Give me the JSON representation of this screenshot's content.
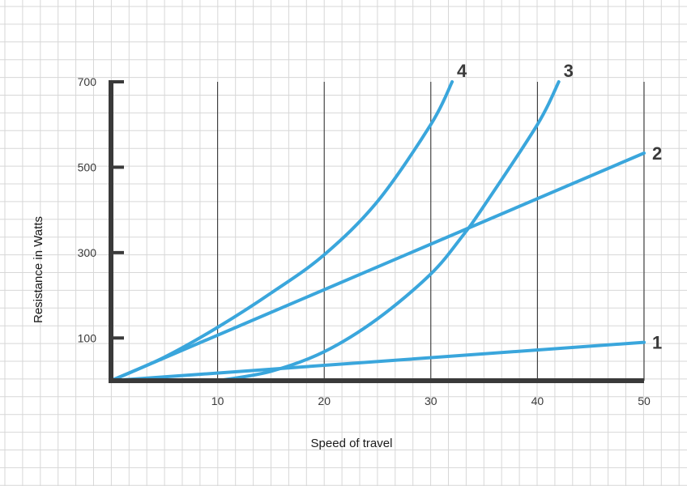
{
  "chart_data": {
    "type": "line",
    "title": "",
    "xlabel": "Speed of travel",
    "ylabel": "Resistance in Watts",
    "xlim": [
      0,
      50
    ],
    "ylim": [
      0,
      700
    ],
    "x_ticks": [
      10,
      20,
      30,
      40,
      50
    ],
    "y_ticks": [
      100,
      300,
      500,
      700
    ],
    "grid": true,
    "line_color": "#3aa6dc",
    "axis_color": "#3a3a3a",
    "series": [
      {
        "name": "1",
        "points": [
          [
            0,
            0
          ],
          [
            50,
            90
          ]
        ]
      },
      {
        "name": "2",
        "points": [
          [
            0,
            0
          ],
          [
            50,
            533
          ]
        ]
      },
      {
        "name": "3",
        "points": [
          [
            10,
            0
          ],
          [
            15,
            22
          ],
          [
            20,
            68
          ],
          [
            25,
            145
          ],
          [
            30,
            250
          ],
          [
            33,
            340
          ],
          [
            35,
            410
          ],
          [
            40,
            600
          ],
          [
            42,
            700
          ]
        ]
      },
      {
        "name": "4",
        "points": [
          [
            0,
            0
          ],
          [
            5,
            55
          ],
          [
            10,
            125
          ],
          [
            15,
            205
          ],
          [
            20,
            295
          ],
          [
            25,
            420
          ],
          [
            30,
            600
          ],
          [
            32,
            700
          ]
        ]
      }
    ]
  }
}
